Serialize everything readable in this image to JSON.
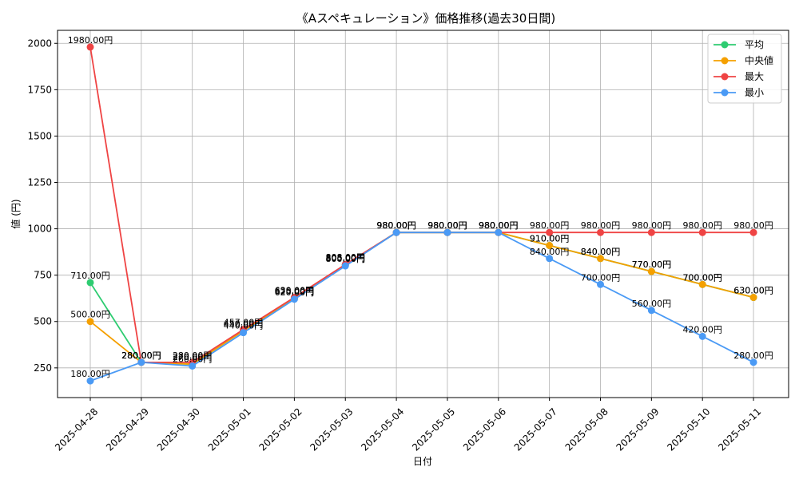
{
  "chart_data": {
    "type": "line",
    "title": "《Aスペキュレーション》価格推移(過去30日間)",
    "xlabel": "日付",
    "ylabel": "値 (円)",
    "categories": [
      "2025-04-28",
      "2025-04-29",
      "2025-04-30",
      "2025-05-01",
      "2025-05-02",
      "2025-05-03",
      "2025-05-04",
      "2025-05-05",
      "2025-05-06",
      "2025-05-07",
      "2025-05-08",
      "2025-05-09",
      "2025-05-10",
      "2025-05-11"
    ],
    "yticks": [
      250,
      500,
      750,
      1000,
      1250,
      1500,
      1750,
      2000
    ],
    "ylim": [
      90,
      2070
    ],
    "grid": true,
    "legend_position": "top-right",
    "value_suffix": "円",
    "series": [
      {
        "name": "平均",
        "color": "#2ecc71",
        "values": [
          710,
          280,
          270,
          450,
          625,
          805,
          980,
          980,
          980,
          910,
          840,
          770,
          700,
          630
        ]
      },
      {
        "name": "中央値",
        "color": "#f5a000",
        "values": [
          500,
          280,
          270,
          450,
          625,
          805,
          980,
          980,
          980,
          910,
          840,
          770,
          700,
          630
        ]
      },
      {
        "name": "最大",
        "color": "#ef4444",
        "values": [
          1980,
          280,
          280,
          457,
          630,
          808,
          980,
          980,
          980,
          980,
          980,
          980,
          980,
          980
        ]
      },
      {
        "name": "最小",
        "color": "#4a9af5",
        "values": [
          180,
          280,
          260,
          440,
          620,
          800,
          980,
          980,
          980,
          840,
          700,
          560,
          420,
          280
        ]
      }
    ]
  }
}
